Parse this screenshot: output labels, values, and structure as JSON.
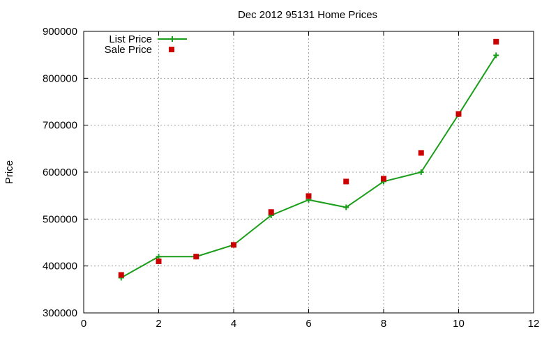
{
  "chart_data": {
    "type": "line",
    "title": "Dec 2012 95131 Home Prices",
    "xlabel": "",
    "ylabel": "Price",
    "xlim": [
      0,
      12
    ],
    "ylim": [
      300000,
      900000
    ],
    "x_ticks": [
      "0",
      "2",
      "4",
      "6",
      "8",
      "10",
      "12"
    ],
    "y_ticks": [
      "300000",
      "400000",
      "500000",
      "600000",
      "700000",
      "800000",
      "900000"
    ],
    "grid": true,
    "legend_position": "top-left",
    "series": [
      {
        "name": "List Price",
        "style": "line-with-plus-markers",
        "color": "#1a9e1a",
        "x": [
          1,
          2,
          3,
          4,
          5,
          6,
          7,
          8,
          9,
          10,
          11
        ],
        "values": [
          375000,
          420000,
          420000,
          445000,
          508000,
          541000,
          525000,
          580000,
          600000,
          723000,
          849000
        ]
      },
      {
        "name": "Sale Price",
        "style": "square-markers",
        "color": "#cc0000",
        "x": [
          1,
          2,
          3,
          4,
          5,
          6,
          7,
          8,
          9,
          10,
          11
        ],
        "values": [
          381000,
          410000,
          420000,
          445000,
          515000,
          549000,
          580000,
          586000,
          641000,
          724000,
          878000
        ]
      }
    ]
  }
}
